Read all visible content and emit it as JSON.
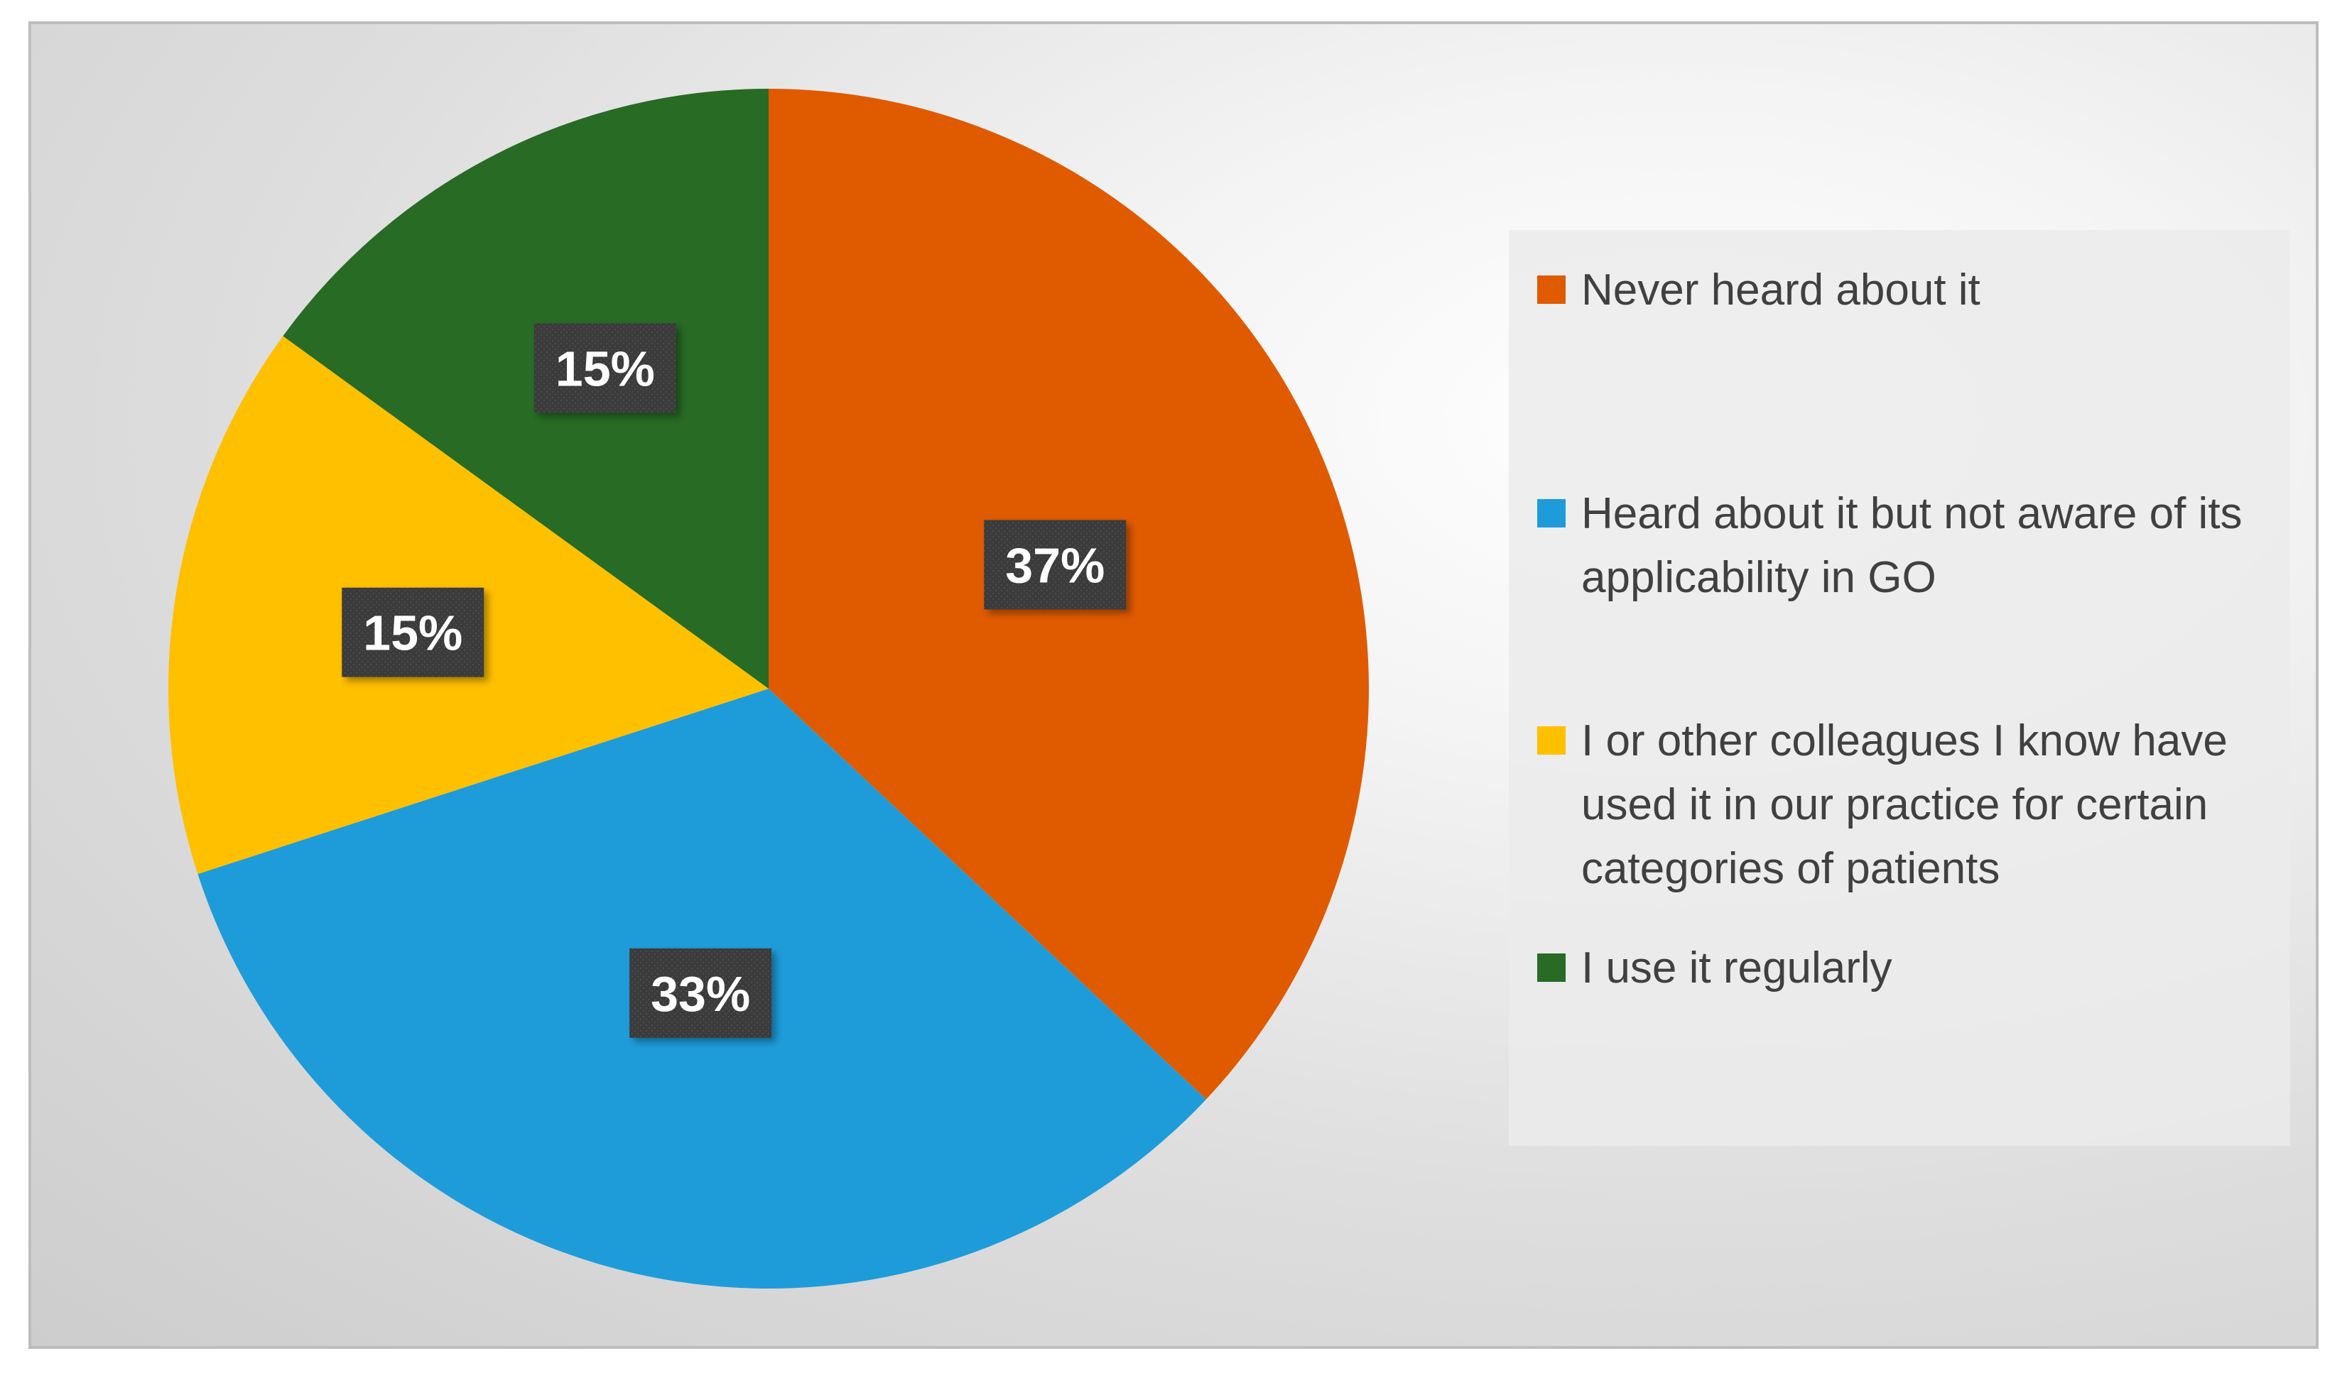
{
  "chart_data": {
    "type": "pie",
    "categories": [
      "Never heard about it",
      "Heard about it but not aware of its applicability in GO",
      "I or other colleagues I know have used it in our practice for certain categories of patients",
      "I use it regularly"
    ],
    "values": [
      37,
      33,
      15,
      15
    ],
    "data_labels": [
      "37%",
      "33%",
      "15%",
      "15%"
    ],
    "colors": [
      "#E05A00",
      "#1E9CDA",
      "#FFC000",
      "#276B24"
    ],
    "legend_placement": "right",
    "start_angle_deg": 0,
    "direction": "clockwise"
  }
}
